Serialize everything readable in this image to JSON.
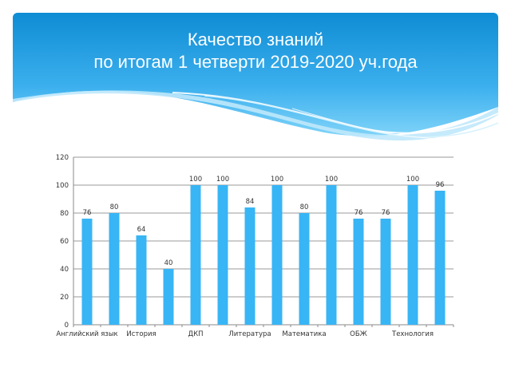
{
  "slide": {
    "title_line1": "Качество знаний",
    "title_line2": "по итогам 1 четверти 2019-2020 уч.года"
  },
  "colors": {
    "bar": "#38b5f5",
    "header_dark": "#0f8fd6",
    "header_light": "#6fcdf7",
    "axis": "#8a8a8a",
    "grid": "#9a9a9a"
  },
  "chart_data": {
    "type": "bar",
    "title": "",
    "xlabel": "",
    "ylabel": "",
    "ylim": [
      0,
      120
    ],
    "yticks": [
      0,
      20,
      40,
      60,
      80,
      100,
      120
    ],
    "grid": true,
    "legend": "none",
    "categories": [
      "Английский язык",
      "",
      "История",
      "",
      "ДКП",
      "",
      "Литература",
      "",
      "Математика",
      "",
      "ОБЖ",
      "",
      "Технология",
      ""
    ],
    "values": [
      76,
      80,
      64,
      40,
      100,
      100,
      84,
      100,
      80,
      100,
      76,
      76,
      100,
      96
    ]
  }
}
